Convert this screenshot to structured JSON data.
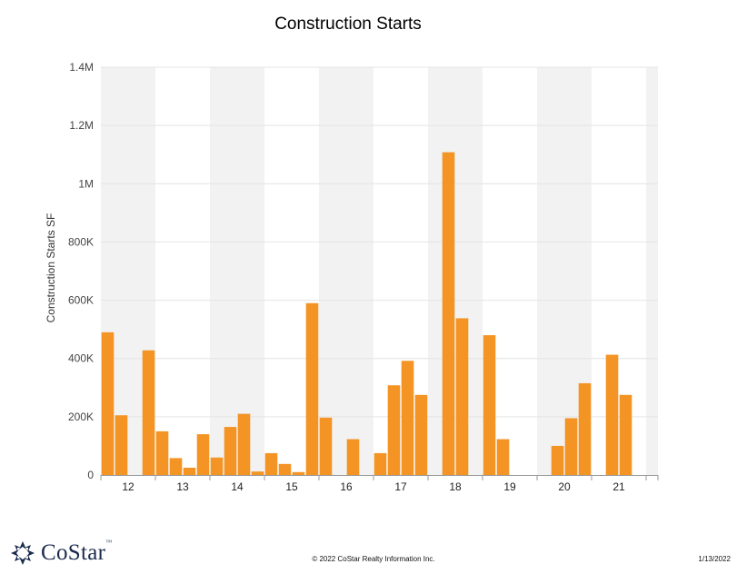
{
  "chart_data": {
    "type": "bar",
    "title": "Construction Starts",
    "ylabel": "Construction Starts SF",
    "xlabel": "",
    "ylim": [
      0,
      1400000
    ],
    "yticks": [
      0,
      200000,
      400000,
      600000,
      800000,
      1000000,
      1200000,
      1400000
    ],
    "ytick_labels": [
      "0",
      "200K",
      "400K",
      "600K",
      "800K",
      "1M",
      "1.2M",
      "1.4M"
    ],
    "grid": true,
    "quarters_per_year": 4,
    "series": [
      {
        "years": [
          "12",
          "13",
          "14",
          "15",
          "16",
          "17",
          "18",
          "19",
          "20",
          "21"
        ],
        "values": [
          490000,
          205000,
          0,
          428000,
          150000,
          58000,
          25000,
          140000,
          60000,
          165000,
          210000,
          12000,
          75000,
          38000,
          10000,
          590000,
          197000,
          0,
          123000,
          0,
          75000,
          308000,
          392000,
          275000,
          0,
          1108000,
          538000,
          0,
          480000,
          123000,
          0,
          0,
          0,
          100000,
          195000,
          315000,
          0,
          413000,
          275000,
          0
        ]
      }
    ],
    "colors": {
      "bar": "#f39425",
      "band": "#f2f2f2",
      "grid": "#e4e4e4",
      "axis": "#9a9a9a"
    }
  },
  "footer": {
    "copyright": "© 2022 CoStar Realty Information Inc.",
    "date": "1/13/2022",
    "logo_text": "CoStar",
    "logo_tm": "™"
  }
}
